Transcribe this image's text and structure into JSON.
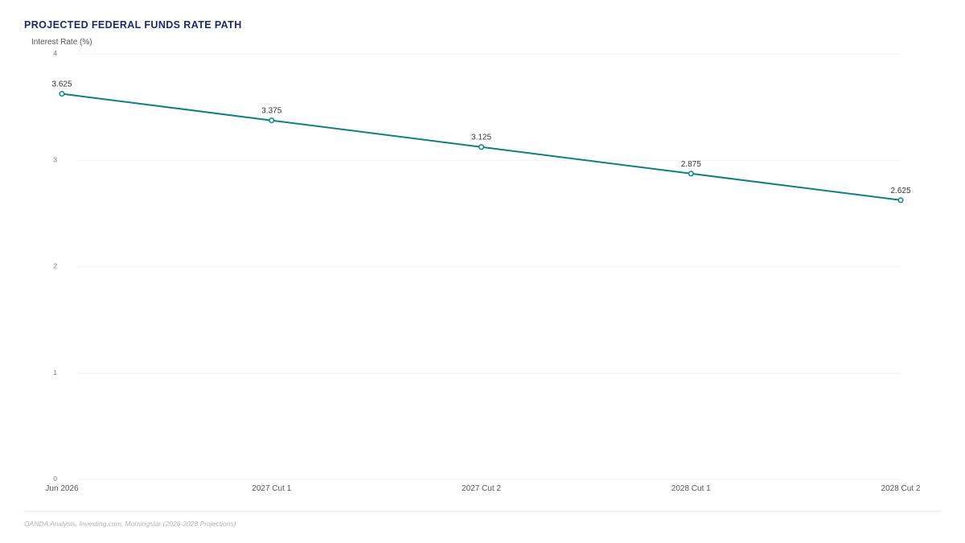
{
  "title": "PROJECTED FEDERAL FUNDS RATE PATH",
  "source": "OANDA Analysis, Investing.com, Morningstar (2026-2028 Projections)",
  "colors": {
    "line": "#0e8083",
    "title": "#1b2a6b",
    "grid": "#f0f0f0"
  },
  "chart_data": {
    "type": "line",
    "title": "PROJECTED FEDERAL FUNDS RATE PATH",
    "xlabel": "",
    "ylabel": "Interest Rate (%)",
    "categories": [
      "Jun 2026",
      "2027 Cut 1",
      "2027 Cut 2",
      "2028 Cut 1",
      "2028 Cut 2"
    ],
    "values": [
      3.625,
      3.375,
      3.125,
      2.875,
      2.625
    ],
    "data_labels": [
      "3.625",
      "3.375",
      "3.125",
      "2.875",
      "2.625"
    ],
    "yticks": [
      0,
      1,
      2,
      3,
      4
    ],
    "ylim": [
      0,
      4
    ],
    "grid": true,
    "legend": "none"
  }
}
